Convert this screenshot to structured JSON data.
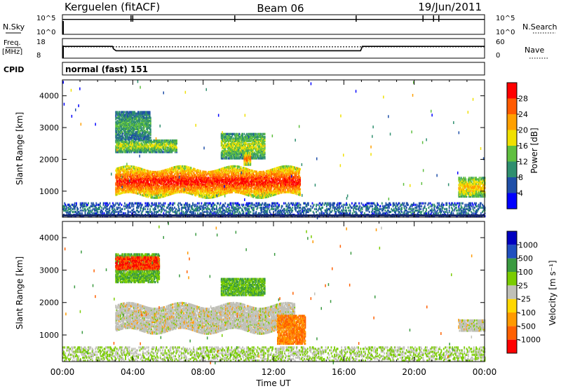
{
  "header": {
    "site": "Kerguelen (fitACF)",
    "beam": "Beam 06",
    "date": "19/Jun/2011"
  },
  "status_panels": {
    "nsky_label": "N.Sky",
    "nsky_ticks": [
      "10^5",
      "10^0"
    ],
    "nsearch_label": "N.Search",
    "nsearch_ticks": [
      "10^5",
      "10^0"
    ],
    "freq_label": "Freq.",
    "freq_unit": "[MHz]",
    "freq_ticks": [
      "18",
      "8"
    ],
    "nave_label": "Nave",
    "nave_ticks": [
      "60",
      "0"
    ],
    "cpid_label": "CPID",
    "cpid_value": "normal (fast) 151"
  },
  "power_panel": {
    "ylabel": "Slant Range [km]",
    "yticks": [
      "4000",
      "3000",
      "2000",
      "1000"
    ],
    "colorbar_label": "Power [dB]",
    "colorbar_ticks": [
      "28",
      "24",
      "20",
      "16",
      "12",
      "8",
      "4"
    ]
  },
  "velocity_panel": {
    "ylabel": "Slant Range [km]",
    "yticks": [
      "4000",
      "3000",
      "2000",
      "1000"
    ],
    "colorbar_label": "Velocity [m s⁻¹]",
    "colorbar_ticks": [
      "1000",
      "500",
      "100",
      "25",
      "-25",
      "-100",
      "-500",
      "-1000"
    ]
  },
  "xaxis": {
    "label": "Time UT",
    "ticks": [
      "00:00",
      "04:00",
      "08:00",
      "12:00",
      "16:00",
      "20:00",
      "00:00"
    ]
  },
  "colors": {
    "power_scale": [
      "#0000ff",
      "#1f4fa8",
      "#2f8f6f",
      "#5fbf3f",
      "#f0e000",
      "#ffa000",
      "#ff5a00",
      "#ff0000"
    ],
    "velocity_scale": [
      "#ff0000",
      "#ff6000",
      "#ff9a00",
      "#ffd700",
      "#c0c0b8",
      "#7acc00",
      "#3a9a40",
      "#2050c0",
      "#0000c0"
    ]
  },
  "chart_data": [
    {
      "type": "line",
      "title": "N.Sky / N.Search",
      "x": [
        0,
        3,
        6,
        9,
        12,
        15,
        18,
        21,
        24
      ],
      "series": [
        {
          "name": "N.Sky",
          "values": [
            5,
            5,
            5,
            5,
            5,
            5,
            5,
            5,
            5
          ]
        }
      ]
    },
    {
      "type": "line",
      "title": "Freq. [MHz] / Nave",
      "x": [
        0,
        2.85,
        2.9,
        3.05,
        16.95,
        17.05,
        24
      ],
      "series": [
        {
          "name": "Freq.",
          "values": [
            14,
            14,
            12.8,
            11.8,
            11.8,
            14,
            14
          ]
        },
        {
          "name": "Nave",
          "values": [
            30,
            30,
            30,
            30,
            30,
            30,
            30
          ]
        }
      ]
    },
    {
      "type": "heatmap",
      "title": "Power [dB]",
      "xlabel": "Time UT",
      "ylabel": "Slant Range [km]",
      "xlim": [
        0,
        24
      ],
      "ylim": [
        180,
        4500
      ],
      "zlim": [
        0,
        30
      ],
      "regions": [
        {
          "t": [
            3.0,
            13.5
          ],
          "r": [
            850,
            1700
          ],
          "power": 28
        },
        {
          "t": [
            3.0,
            6.5
          ],
          "r": [
            2200,
            2600
          ],
          "power": 16
        },
        {
          "t": [
            3.0,
            5.0
          ],
          "r": [
            2600,
            3500
          ],
          "power": 12
        },
        {
          "t": [
            9.0,
            11.5
          ],
          "r": [
            2000,
            2800
          ],
          "power": 16
        },
        {
          "t": [
            10.3,
            10.7
          ],
          "r": [
            1800,
            2200
          ],
          "power": 24
        },
        {
          "t": [
            22.5,
            24.0
          ],
          "r": [
            800,
            1400
          ],
          "power": 20
        },
        {
          "t": [
            0.0,
            24.0
          ],
          "r": [
            180,
            600
          ],
          "power": 8
        }
      ]
    },
    {
      "type": "heatmap",
      "title": "Velocity [m s⁻¹]",
      "xlabel": "Time UT",
      "ylabel": "Slant Range [km]",
      "xlim": [
        0,
        24
      ],
      "ylim": [
        180,
        4500
      ],
      "zlim": [
        -1000,
        1000
      ],
      "regions": [
        {
          "t": [
            3.0,
            13.2
          ],
          "r": [
            1100,
            1900
          ],
          "velocity": 0
        },
        {
          "t": [
            12.2,
            13.8
          ],
          "r": [
            700,
            1600
          ],
          "velocity": -100
        },
        {
          "t": [
            3.0,
            5.5
          ],
          "r": [
            2600,
            3500
          ],
          "velocity": 100
        },
        {
          "t": [
            3.0,
            5.5
          ],
          "r": [
            3000,
            3400
          ],
          "velocity": -500
        },
        {
          "t": [
            9.0,
            11.5
          ],
          "r": [
            2200,
            2700
          ],
          "velocity": 100
        },
        {
          "t": [
            22.5,
            24.0
          ],
          "r": [
            1100,
            1450
          ],
          "velocity": 0
        },
        {
          "t": [
            0.0,
            24.0
          ],
          "r": [
            180,
            600
          ],
          "velocity": 25
        }
      ]
    }
  ]
}
